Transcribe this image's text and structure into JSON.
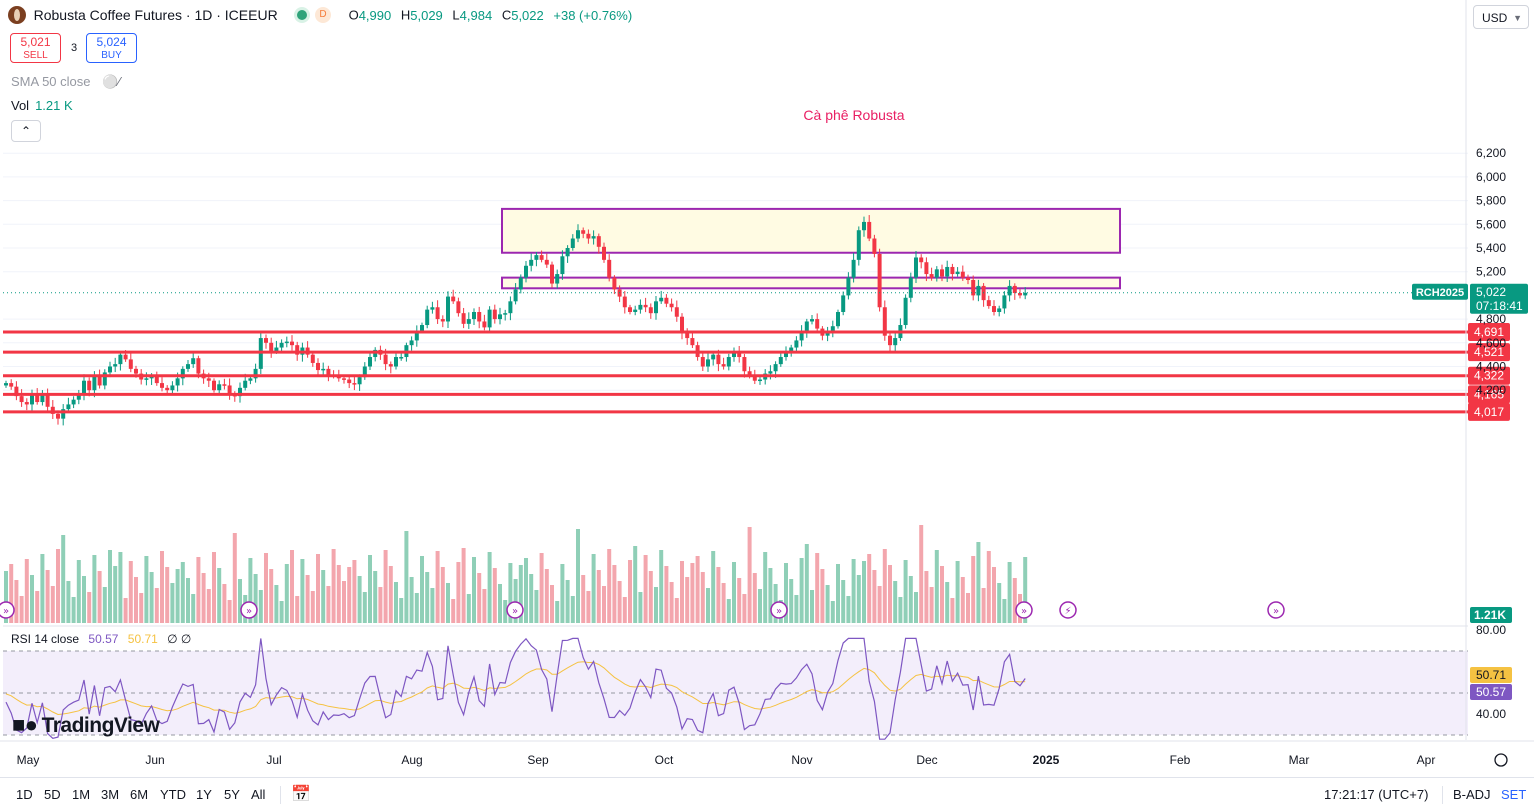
{
  "header": {
    "title": "Robusta Coffee Futures · 1D · ICEEUR",
    "market_badge": "D",
    "ohlc": {
      "o_label": "O",
      "o": "4,990",
      "h_label": "H",
      "h": "5,029",
      "l_label": "L",
      "l": "4,984",
      "c_label": "C",
      "c": "5,022",
      "change": "+38 (+0.76%)"
    }
  },
  "trade": {
    "sell_price": "5,021",
    "sell_label": "SELL",
    "spread": "3",
    "buy_price": "5,024",
    "buy_label": "BUY"
  },
  "indicators": {
    "sma_label": "SMA 50 close",
    "vol_label": "Vol",
    "vol_value": "1.21 K",
    "rsi_label": "RSI 14 close",
    "rsi_value": "50.57",
    "rsi_ma_value": "50.71",
    "rsi_extra": "∅ ∅"
  },
  "currency": "USD",
  "annotation": "Cà phê Robusta",
  "price_badges": {
    "symbol": "RCH2025",
    "last": "5,022",
    "countdown": "07:18:41",
    "volume": "1.21K",
    "rsi": "50.57",
    "rsi_ma": "50.71"
  },
  "logo_text": "TradingView",
  "bottom_bar": {
    "ranges": [
      "1D",
      "5D",
      "1M",
      "3M",
      "6M",
      "YTD",
      "1Y",
      "5Y",
      "All"
    ],
    "clock": "17:21:17 (UTC+7)",
    "adjust": "B-ADJ",
    "settings": "SET"
  },
  "colors": {
    "up": "#089981",
    "down": "#f23645",
    "zone_border": "#9c27b0",
    "zone_fill": "#fffbe3",
    "rsi_line": "#7e57c2",
    "rsi_ma": "#f5c242",
    "annotation": "#e91e63"
  },
  "chart_data": {
    "type": "candlestick",
    "title": "",
    "x_labels": [
      "May",
      "Jun",
      "Jul",
      "Aug",
      "Sep",
      "Oct",
      "Nov",
      "Dec",
      "2025",
      "Feb",
      "Mar",
      "Apr"
    ],
    "y_ticks": [
      "6,200",
      "6,000",
      "5,800",
      "5,600",
      "5,400",
      "5,200",
      "4,800",
      "4,600",
      "4,400",
      "4,200"
    ],
    "price_range": [
      4200,
      6200
    ],
    "support_levels": [
      {
        "price": 4691,
        "label": "4,691"
      },
      {
        "price": 4521,
        "label": "4,521"
      },
      {
        "price": 4322,
        "label": "4,322"
      },
      {
        "price": 4165,
        "label": "4,165"
      },
      {
        "price": 4017,
        "label": "4,017"
      }
    ],
    "zones": [
      {
        "name": "upper-resistance",
        "low": 5360,
        "high": 5730
      },
      {
        "name": "lower-resistance",
        "low": 5060,
        "high": 5150
      }
    ],
    "current_price": 5022,
    "rsi_range": [
      40,
      80
    ],
    "rsi_ticks": [
      "80.00",
      "40.00"
    ],
    "closes": [
      4260,
      4230,
      4150,
      4100,
      4080,
      4160,
      4100,
      4170,
      4060,
      4000,
      3960,
      4040,
      4080,
      4120,
      4160,
      4280,
      4200,
      4320,
      4240,
      4350,
      4400,
      4420,
      4500,
      4460,
      4380,
      4340,
      4290,
      4300,
      4320,
      4260,
      4220,
      4200,
      4240,
      4300,
      4380,
      4420,
      4470,
      4340,
      4300,
      4280,
      4200,
      4250,
      4240,
      4160,
      4150,
      4220,
      4280,
      4300,
      4380,
      4640,
      4600,
      4530,
      4560,
      4600,
      4610,
      4580,
      4500,
      4560,
      4500,
      4430,
      4370,
      4380,
      4330,
      4320,
      4300,
      4290,
      4260,
      4250,
      4310,
      4400,
      4480,
      4540,
      4500,
      4420,
      4400,
      4480,
      4480,
      4580,
      4620,
      4700,
      4750,
      4880,
      4900,
      4800,
      4780,
      4990,
      4950,
      4850,
      4760,
      4800,
      4860,
      4780,
      4730,
      4880,
      4800,
      4840,
      4850,
      4950,
      5050,
      5150,
      5250,
      5300,
      5340,
      5300,
      5260,
      5100,
      5180,
      5330,
      5400,
      5480,
      5550,
      5520,
      5480,
      5500,
      5410,
      5300,
      5150,
      5050,
      4990,
      4900,
      4860,
      4880,
      4920,
      4900,
      4850,
      4950,
      4980,
      4930,
      4900,
      4820,
      4680,
      4640,
      4580,
      4480,
      4400,
      4460,
      4500,
      4420,
      4400,
      4480,
      4520,
      4480,
      4360,
      4320,
      4280,
      4290,
      4340,
      4360,
      4420,
      4480,
      4520,
      4560,
      4620,
      4700,
      4780,
      4800,
      4720,
      4660,
      4700,
      4740,
      4860,
      5000,
      5150,
      5300,
      5550,
      5620,
      5480,
      5350,
      4900,
      4660,
      4580,
      4640,
      4750,
      4980,
      5150,
      5320,
      5280,
      5180,
      5150,
      5220,
      5160,
      5240,
      5180,
      5200,
      5150,
      5130,
      5000,
      5080,
      4960,
      4910,
      4860,
      4890,
      5000,
      5080,
      5020,
      5000,
      5022
    ]
  }
}
